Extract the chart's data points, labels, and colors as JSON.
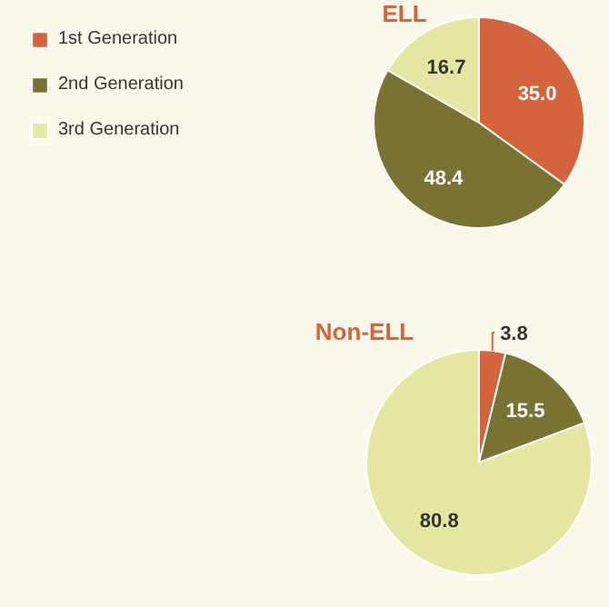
{
  "chart_data": [
    {
      "type": "pie",
      "title": "ELL",
      "categories": [
        "1st Generation",
        "2nd Generation",
        "3rd Generation"
      ],
      "values": [
        35.0,
        48.4,
        16.7
      ],
      "value_labels": [
        "35.0",
        "48.4",
        "16.7"
      ],
      "colors": [
        "#d4643c",
        "#7a7232",
        "#e4e6a2"
      ],
      "legend": "left"
    },
    {
      "type": "pie",
      "title": "Non-ELL",
      "categories": [
        null,
        null,
        null
      ],
      "values": [
        3.8,
        15.5,
        80.8
      ],
      "value_labels": [
        "3.8",
        "15.5",
        "80.8"
      ],
      "colors": [
        "#d4643c",
        "#7a7232",
        "#e4e6a2"
      ],
      "legend": false
    }
  ]
}
